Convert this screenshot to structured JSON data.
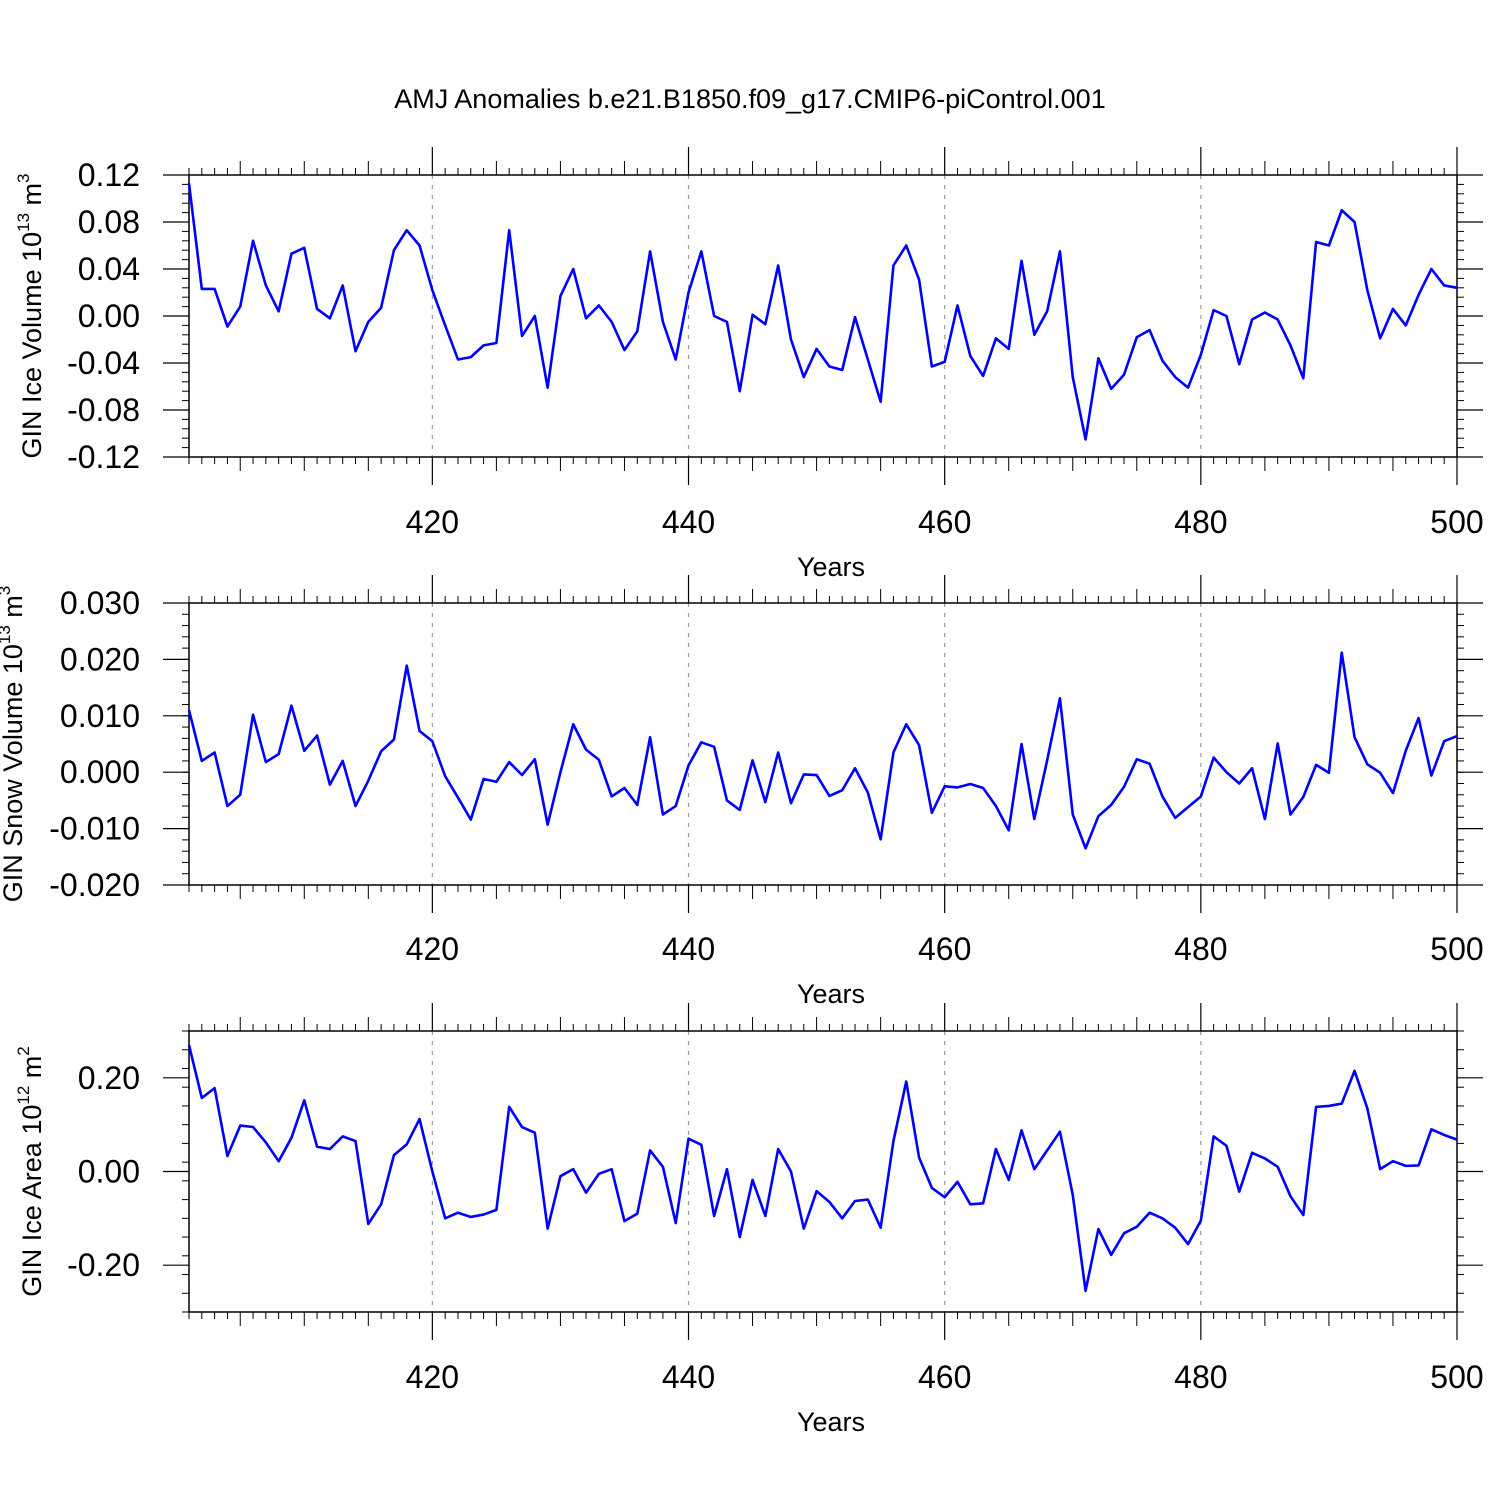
{
  "figure_title": "AMJ Anomalies b.e21.B1850.f09_g17.CMIP6-piControl.001",
  "colors": {
    "series": "#0000ff",
    "frame": "#000000",
    "grid": "#999999"
  },
  "chart_data": [
    {
      "type": "line",
      "title": "",
      "xlabel": "Years",
      "ylabel": {
        "prefix": "GIN Ice Volume 10",
        "exponent": "13",
        "unit": " m",
        "unit_exponent": "3"
      },
      "xlim": [
        401,
        500
      ],
      "ylim": [
        -0.12,
        0.12
      ],
      "xticks": [
        420,
        440,
        460,
        480,
        500
      ],
      "xtick_labels": [
        "420",
        "440",
        "460",
        "480",
        "500"
      ],
      "yticks": [
        -0.12,
        -0.08,
        -0.04,
        0.0,
        0.04,
        0.08,
        0.12
      ],
      "ytick_labels": [
        "-0.12",
        "-0.08",
        "-0.04",
        "0.00",
        "0.04",
        "0.08",
        "0.12"
      ],
      "grid_x": true,
      "x_start": 401,
      "series": [
        {
          "name": "GIN Ice Volume",
          "values": [
            0.113,
            0.023,
            0.023,
            -0.009,
            0.008,
            0.064,
            0.026,
            0.004,
            0.053,
            0.058,
            0.006,
            -0.002,
            0.026,
            -0.03,
            -0.005,
            0.007,
            0.056,
            0.073,
            0.06,
            0.022,
            -0.008,
            -0.037,
            -0.035,
            -0.025,
            -0.023,
            0.073,
            -0.017,
            0.0,
            -0.061,
            0.017,
            0.04,
            -0.002,
            0.009,
            -0.005,
            -0.029,
            -0.013,
            0.055,
            -0.005,
            -0.037,
            0.02,
            0.055,
            0.0,
            -0.005,
            -0.064,
            0.001,
            -0.007,
            0.043,
            -0.02,
            -0.052,
            -0.028,
            -0.043,
            -0.046,
            -0.001,
            -0.037,
            -0.073,
            0.043,
            0.06,
            0.031,
            -0.043,
            -0.039,
            0.009,
            -0.034,
            -0.051,
            -0.019,
            -0.028,
            0.047,
            -0.016,
            0.004,
            0.055,
            -0.052,
            -0.105,
            -0.036,
            -0.062,
            -0.05,
            -0.018,
            -0.012,
            -0.038,
            -0.052,
            -0.061,
            -0.033,
            0.005,
            0.0,
            -0.041,
            -0.003,
            0.003,
            -0.003,
            -0.025,
            -0.053,
            0.063,
            0.06,
            0.09,
            0.08,
            0.022,
            -0.019,
            0.006,
            -0.008,
            0.018,
            0.04,
            0.026,
            0.024
          ]
        }
      ]
    },
    {
      "type": "line",
      "title": "",
      "xlabel": "Years",
      "ylabel": {
        "prefix": "GIN Snow Volume 10",
        "exponent": "13",
        "unit": " m",
        "unit_exponent": "3"
      },
      "xlim": [
        401,
        500
      ],
      "ylim": [
        -0.02,
        0.03
      ],
      "xticks": [
        420,
        440,
        460,
        480,
        500
      ],
      "xtick_labels": [
        "420",
        "440",
        "460",
        "480",
        "500"
      ],
      "yticks": [
        -0.02,
        -0.01,
        0.0,
        0.01,
        0.02,
        0.03
      ],
      "ytick_labels": [
        "-0.020",
        "-0.010",
        "0.000",
        "0.010",
        "0.020",
        "0.030"
      ],
      "grid_x": true,
      "x_start": 401,
      "series": [
        {
          "name": "GIN Snow Volume",
          "values": [
            0.011,
            0.002,
            0.0035,
            -0.006,
            -0.004,
            0.0102,
            0.0018,
            0.0032,
            0.0118,
            0.0038,
            0.0065,
            -0.0022,
            0.002,
            -0.006,
            -0.0015,
            0.0037,
            0.0058,
            0.0189,
            0.0073,
            0.0055,
            -0.0007,
            -0.0045,
            -0.0084,
            -0.0012,
            -0.0017,
            0.0018,
            -0.0005,
            0.0023,
            -0.0093,
            0.0,
            0.0085,
            0.004,
            0.0022,
            -0.0043,
            -0.0028,
            -0.0058,
            0.0062,
            -0.0075,
            -0.006,
            0.0012,
            0.0053,
            0.0045,
            -0.005,
            -0.0067,
            0.0021,
            -0.0053,
            0.0035,
            -0.0055,
            -0.0004,
            -0.0005,
            -0.0042,
            -0.0032,
            0.0007,
            -0.0036,
            -0.0119,
            0.0035,
            0.0085,
            0.0048,
            -0.0072,
            -0.0025,
            -0.0027,
            -0.0021,
            -0.0028,
            -0.006,
            -0.0103,
            0.005,
            -0.0083,
            0.0021,
            0.0131,
            -0.0075,
            -0.0135,
            -0.0078,
            -0.0058,
            -0.0026,
            0.0023,
            0.0015,
            -0.0043,
            -0.0081,
            -0.0062,
            -0.0043,
            0.0026,
            0.0,
            -0.002,
            0.0007,
            -0.0083,
            0.0051,
            -0.0075,
            -0.0044,
            0.0013,
            -0.0001,
            0.0212,
            0.0062,
            0.0014,
            -0.0001,
            -0.0037,
            0.0038,
            0.0096,
            -0.0006,
            0.0055,
            0.0064
          ]
        }
      ]
    },
    {
      "type": "line",
      "title": "",
      "xlabel": "Years",
      "ylabel": {
        "prefix": "GIN Ice Area 10",
        "exponent": "12",
        "unit": " m",
        "unit_exponent": "2"
      },
      "xlim": [
        401,
        500
      ],
      "ylim": [
        -0.3,
        0.3
      ],
      "xticks": [
        420,
        440,
        460,
        480,
        500
      ],
      "xtick_labels": [
        "420",
        "440",
        "460",
        "480",
        "500"
      ],
      "yticks": [
        -0.2,
        0.0,
        0.2
      ],
      "ytick_labels": [
        "-0.20",
        "0.00",
        "0.20"
      ],
      "grid_x": true,
      "x_start": 401,
      "series": [
        {
          "name": "GIN Ice Area",
          "values": [
            0.27,
            0.157,
            0.178,
            0.033,
            0.098,
            0.095,
            0.062,
            0.022,
            0.072,
            0.152,
            0.053,
            0.048,
            0.075,
            0.065,
            -0.112,
            -0.07,
            0.035,
            0.058,
            0.112,
            0.0,
            -0.1,
            -0.088,
            -0.097,
            -0.092,
            -0.082,
            0.138,
            0.095,
            0.083,
            -0.122,
            -0.01,
            0.005,
            -0.045,
            -0.005,
            0.005,
            -0.106,
            -0.09,
            0.045,
            0.01,
            -0.11,
            0.07,
            0.057,
            -0.095,
            0.005,
            -0.14,
            -0.018,
            -0.095,
            0.048,
            0.0,
            -0.122,
            -0.042,
            -0.065,
            -0.1,
            -0.063,
            -0.06,
            -0.12,
            0.065,
            0.192,
            0.03,
            -0.035,
            -0.055,
            -0.022,
            -0.07,
            -0.068,
            0.048,
            -0.018,
            0.088,
            0.005,
            0.045,
            0.085,
            -0.05,
            -0.255,
            -0.123,
            -0.178,
            -0.132,
            -0.118,
            -0.088,
            -0.1,
            -0.12,
            -0.155,
            -0.105,
            0.075,
            0.055,
            -0.043,
            0.04,
            0.028,
            0.01,
            -0.053,
            -0.093,
            0.138,
            0.14,
            0.145,
            0.215,
            0.135,
            0.005,
            0.022,
            0.012,
            0.013,
            0.09,
            0.078,
            0.068
          ]
        }
      ]
    }
  ]
}
